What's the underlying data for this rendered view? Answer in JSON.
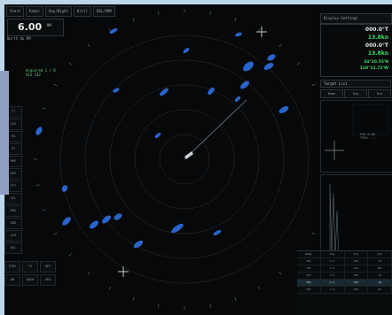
{
  "topbar": {
    "buttons": [
      "Chart",
      "Radar",
      "Day/Night",
      "Brill",
      "EBL/VRM"
    ]
  },
  "range": {
    "value": "6.00",
    "unit": "NM",
    "mode": "North Up RM"
  },
  "left_buttons": [
    "TT",
    "AIS",
    "TRL",
    "PI",
    "MAP",
    "BRG",
    "FFT",
    "CAL",
    "RNG",
    "GRD",
    "ALM",
    "DEL"
  ],
  "target_info": {
    "line1": "Acquired 1 / 0",
    "line2": "AIS  142"
  },
  "bottom_left": {
    "tiles": [
      "STBY",
      "TX",
      "OFF",
      "ON",
      "GAIN",
      "SEA"
    ]
  },
  "panel": {
    "head": [
      "Display",
      "Settings"
    ],
    "heading_lines": [
      {
        "text": "000.0°T",
        "color": "white"
      },
      {
        "text": "13.8kn",
        "color": "green"
      },
      {
        "text": "000.0°T",
        "color": "white"
      },
      {
        "text": "13.8kn",
        "color": "green"
      },
      {
        "text": "34°10.55'N",
        "color": "green"
      },
      {
        "text": "118°11.72'W",
        "color": "green"
      }
    ],
    "sub_tab": "Target List",
    "columns": [
      "Name",
      "Rng",
      "Brg"
    ],
    "target_detail": [
      "CPA 0.00",
      "TCPA --:--"
    ]
  },
  "bottom_table": {
    "rows": [
      [
        "Name",
        "Rng",
        "Brg",
        "Spd"
      ],
      [
        "T01",
        "2.1",
        "045",
        "12"
      ],
      [
        "T02",
        "3.4",
        "112",
        "08"
      ],
      [
        "T03",
        "4.0",
        "220",
        "15"
      ],
      [
        "T04",
        "5.2",
        "301",
        "10"
      ],
      [
        "T05",
        "1.8",
        "150",
        "06"
      ]
    ]
  },
  "colors": {
    "echo": "#2f6fe0",
    "ring": "#5a5e60",
    "background": "#06080a",
    "accent_green": "#3ee06a"
  }
}
